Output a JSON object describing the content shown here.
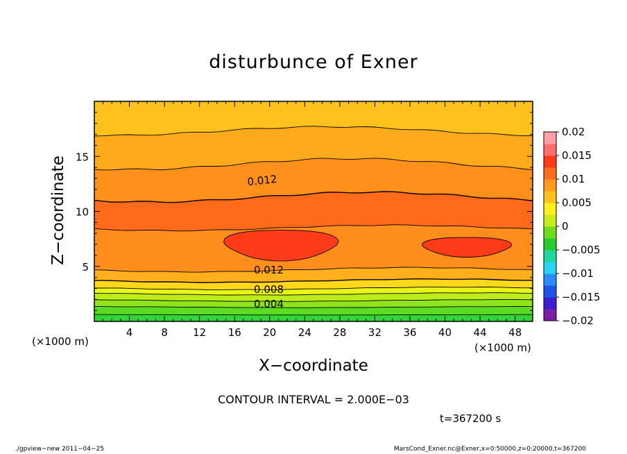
{
  "chart_data": {
    "type": "heatmap",
    "title": "disturbunce of Exner",
    "xlabel": "X-coordinate",
    "ylabel": "Z-coordinate",
    "x_unit": "(×1000 m)",
    "xlim": [
      0,
      50
    ],
    "ylim": [
      0,
      20
    ],
    "x_ticks": [
      4,
      8,
      12,
      16,
      20,
      24,
      28,
      32,
      36,
      40,
      44,
      48
    ],
    "y_ticks": [
      5,
      10,
      15
    ],
    "colorbar": {
      "range": [
        -0.02,
        0.02
      ],
      "tick_labels": [
        "0.02",
        "0.015",
        "0.01",
        "0.005",
        "0",
        "−0.005",
        "−0.01",
        "−0.015",
        "−0.02"
      ],
      "colors": [
        "#7a1ea8",
        "#3a1fd0",
        "#1f52e8",
        "#2a8cff",
        "#2ad4f0",
        "#22d6a0",
        "#27cc2e",
        "#6fdc1e",
        "#c8ec1a",
        "#ffef1a",
        "#ffc21c",
        "#ff9a1c",
        "#ff6e1c",
        "#ff3a1a",
        "#ff6f6f",
        "#ffa0a8"
      ]
    },
    "contour_labels": [
      "0.012",
      "0.012",
      "0.008",
      "0.004"
    ],
    "levels": [
      {
        "value": 0.001,
        "color": "#33d33a",
        "z": [
          0.0,
          0.6
        ]
      },
      {
        "value": 0.002,
        "color": "#5bdc22",
        "z": [
          0.6,
          1.3
        ]
      },
      {
        "value": 0.003,
        "color": "#8fe41e",
        "z": [
          1.3,
          1.9
        ]
      },
      {
        "value": 0.004,
        "color": "#bdec1b",
        "z": [
          1.9,
          2.5
        ]
      },
      {
        "value": 0.005,
        "color": "#e8f51b",
        "z": [
          2.5,
          3.0
        ]
      },
      {
        "value": 0.007,
        "color": "#ffd81b",
        "z": [
          3.0,
          3.7
        ]
      },
      {
        "value": 0.009,
        "color": "#ffb01b",
        "z": [
          3.7,
          4.7
        ]
      },
      {
        "value": 0.011,
        "color": "#ff8e1c",
        "z": [
          4.7,
          8.5
        ]
      },
      {
        "value": 0.013,
        "color": "#ff6a1b",
        "z": [
          8.5,
          11.3
        ]
      },
      {
        "value": 0.011,
        "color": "#ff901c",
        "z": [
          11.3,
          14.3
        ]
      },
      {
        "value": 0.009,
        "color": "#ffa91c",
        "z": [
          14.3,
          17.3
        ]
      },
      {
        "value": 0.007,
        "color": "#ffc21c",
        "z": [
          17.3,
          20.0
        ]
      }
    ]
  },
  "text": {
    "title": "disturbunce of Exner",
    "xlabel": "X−coordinate",
    "ylabel": "Z−coordinate",
    "x_unit_left": "(×1000 m)",
    "x_unit_right": "(×1000 m)",
    "interval": "CONTOUR INTERVAL = 2.000E−03",
    "timestamp": "t=367200 s",
    "footer_left": "./gpview−new   2011−04−25",
    "footer_right": "MarsCond_Exner.nc@Exner,x=0:50000,z=0:20000,t=367200"
  }
}
